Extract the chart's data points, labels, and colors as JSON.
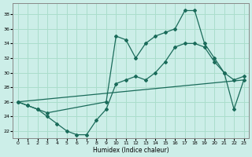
{
  "xlabel": "Humidex (Indice chaleur)",
  "xlim": [
    -0.5,
    23.5
  ],
  "ylim": [
    21.0,
    39.5
  ],
  "yticks": [
    22,
    24,
    26,
    28,
    30,
    32,
    34,
    36,
    38
  ],
  "xticks": [
    0,
    1,
    2,
    3,
    4,
    5,
    6,
    7,
    8,
    9,
    10,
    11,
    12,
    13,
    14,
    15,
    16,
    17,
    18,
    19,
    20,
    21,
    22,
    23
  ],
  "bg_color": "#cceee8",
  "grid_color": "#aaddcc",
  "line_color": "#1a6b5a",
  "line1_x": [
    0,
    1,
    2,
    3,
    9,
    10,
    11,
    12,
    13,
    14,
    15,
    16,
    17,
    18,
    19,
    20,
    21,
    22,
    23
  ],
  "line1_y": [
    26.0,
    25.5,
    25.0,
    24.5,
    26.0,
    35.0,
    34.5,
    32.0,
    34.0,
    35.0,
    35.5,
    36.0,
    38.5,
    38.5,
    34.0,
    32.0,
    30.0,
    25.0,
    29.0
  ],
  "line2_x": [
    0,
    1,
    2,
    3,
    4,
    5,
    6,
    7,
    8,
    9,
    10,
    11,
    12,
    13,
    14,
    15,
    16,
    17,
    18,
    19,
    20,
    21,
    22,
    23
  ],
  "line2_y": [
    26.0,
    25.5,
    25.0,
    24.0,
    23.0,
    22.0,
    21.5,
    21.5,
    23.5,
    25.0,
    28.5,
    29.0,
    29.5,
    29.0,
    30.0,
    31.5,
    33.5,
    34.0,
    34.0,
    33.5,
    31.5,
    30.0,
    29.0,
    29.5
  ],
  "line3_x": [
    0,
    23
  ],
  "line3_y": [
    26.0,
    29.0
  ]
}
